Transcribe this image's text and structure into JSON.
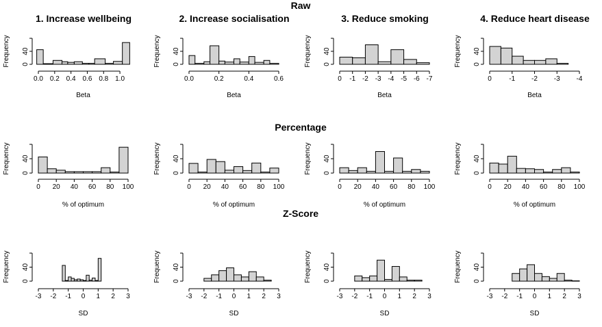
{
  "figure": {
    "row_titles": [
      "Raw",
      "Percentage",
      "Z-Score"
    ],
    "column_titles": [
      "1. Increase wellbeing",
      "2. Increase socialisation",
      "3. Reduce smoking",
      "4. Reduce heart disease"
    ],
    "colors": {
      "bar_fill": "#d3d3d3",
      "bar_stroke": "#000000",
      "background": "#ffffff"
    }
  },
  "chart_data": [
    {
      "type": "bar",
      "row": 0,
      "col": 0,
      "xlabel": "Beta",
      "ylabel": "Frequency",
      "xlim": [
        0,
        1.1
      ],
      "ylim": [
        0,
        80
      ],
      "xticks": [
        0.0,
        0.2,
        0.4,
        0.6,
        0.8,
        1.0
      ],
      "xtick_labels": [
        "0.0",
        "0.2",
        "0.4",
        "0.6",
        "0.8",
        "1.0"
      ],
      "yticks": [
        0,
        40
      ],
      "ytick_labels": [
        "0",
        "40"
      ],
      "bins": [
        [
          -0.02,
          0.06
        ],
        [
          0.06,
          0.18
        ],
        [
          0.18,
          0.29
        ],
        [
          0.29,
          0.36
        ],
        [
          0.36,
          0.44
        ],
        [
          0.44,
          0.54
        ],
        [
          0.54,
          0.62
        ],
        [
          0.62,
          0.69
        ],
        [
          0.69,
          0.82
        ],
        [
          0.82,
          0.92
        ],
        [
          0.92,
          1.03
        ],
        [
          1.03,
          1.12
        ]
      ],
      "values": [
        45,
        2,
        12,
        8,
        6,
        8,
        3,
        3,
        17,
        3,
        9,
        67
      ]
    },
    {
      "type": "bar",
      "row": 0,
      "col": 1,
      "xlabel": "Beta",
      "ylabel": "Frequency",
      "xlim": [
        0,
        0.6
      ],
      "ylim": [
        0,
        80
      ],
      "xticks": [
        0.0,
        0.2,
        0.4,
        0.6
      ],
      "xtick_labels": [
        "0.0",
        "0.2",
        "0.4",
        "0.6"
      ],
      "yticks": [
        0,
        40
      ],
      "ytick_labels": [
        "0",
        "40"
      ],
      "bins": [
        [
          0.0,
          0.04
        ],
        [
          0.04,
          0.1
        ],
        [
          0.1,
          0.14
        ],
        [
          0.14,
          0.2
        ],
        [
          0.2,
          0.24
        ],
        [
          0.24,
          0.3
        ],
        [
          0.3,
          0.34
        ],
        [
          0.34,
          0.4
        ],
        [
          0.4,
          0.44
        ],
        [
          0.44,
          0.5
        ],
        [
          0.5,
          0.54
        ],
        [
          0.54,
          0.6
        ]
      ],
      "values": [
        27,
        3,
        8,
        57,
        10,
        7,
        17,
        7,
        24,
        6,
        12,
        3
      ]
    },
    {
      "type": "bar",
      "row": 0,
      "col": 2,
      "xlabel": "Beta",
      "ylabel": "Frequency",
      "xlim": [
        0,
        -7
      ],
      "ylim": [
        0,
        80
      ],
      "xticks": [
        0,
        -1,
        -2,
        -3,
        -4,
        -5,
        -6,
        -7
      ],
      "xtick_labels": [
        "0",
        "-1",
        "-2",
        "-3",
        "-4",
        "-5",
        "-6",
        "-7"
      ],
      "yticks": [
        0,
        40
      ],
      "ytick_labels": [
        "0",
        "40"
      ],
      "bins": [
        [
          0,
          -1
        ],
        [
          -1,
          -2
        ],
        [
          -2,
          -3
        ],
        [
          -3,
          -4
        ],
        [
          -4,
          -5
        ],
        [
          -5,
          -6
        ],
        [
          -6,
          -7
        ]
      ],
      "values": [
        22,
        20,
        60,
        8,
        45,
        15,
        5
      ]
    },
    {
      "type": "bar",
      "row": 0,
      "col": 3,
      "xlabel": "Beta",
      "ylabel": "Frequency",
      "xlim": [
        0,
        -4
      ],
      "ylim": [
        0,
        80
      ],
      "xticks": [
        0,
        -1,
        -2,
        -3,
        -4
      ],
      "xtick_labels": [
        "0",
        "-1",
        "-2",
        "-3",
        "-4"
      ],
      "yticks": [
        0,
        40
      ],
      "ytick_labels": [
        "0",
        "40"
      ],
      "bins": [
        [
          0,
          -0.5
        ],
        [
          -0.5,
          -1
        ],
        [
          -1,
          -1.5
        ],
        [
          -1.5,
          -2
        ],
        [
          -2,
          -2.5
        ],
        [
          -2.5,
          -3
        ],
        [
          -3,
          -3.5
        ]
      ],
      "values": [
        55,
        50,
        25,
        12,
        12,
        17,
        3
      ]
    },
    {
      "type": "bar",
      "row": 1,
      "col": 0,
      "xlabel": "% of optimum",
      "ylabel": "Frequency",
      "xlim": [
        0,
        100
      ],
      "ylim": [
        0,
        80
      ],
      "xticks": [
        0,
        20,
        40,
        60,
        80,
        100
      ],
      "xtick_labels": [
        "0",
        "20",
        "40",
        "60",
        "80",
        "100"
      ],
      "yticks": [
        0,
        40
      ],
      "ytick_labels": [
        "0",
        "40"
      ],
      "bins": [
        [
          0,
          10
        ],
        [
          10,
          20
        ],
        [
          20,
          30
        ],
        [
          30,
          40
        ],
        [
          40,
          50
        ],
        [
          50,
          60
        ],
        [
          60,
          70
        ],
        [
          70,
          80
        ],
        [
          80,
          90
        ],
        [
          90,
          100
        ]
      ],
      "values": [
        45,
        12,
        8,
        4,
        4,
        4,
        4,
        15,
        3,
        72
      ]
    },
    {
      "type": "bar",
      "row": 1,
      "col": 1,
      "xlabel": "% of optimum",
      "ylabel": "Frequency",
      "xlim": [
        0,
        100
      ],
      "ylim": [
        0,
        80
      ],
      "xticks": [
        0,
        20,
        40,
        60,
        80,
        100
      ],
      "xtick_labels": [
        "0",
        "20",
        "40",
        "60",
        "80",
        "100"
      ],
      "yticks": [
        0,
        40
      ],
      "ytick_labels": [
        "0",
        "40"
      ],
      "bins": [
        [
          0,
          10
        ],
        [
          10,
          20
        ],
        [
          20,
          30
        ],
        [
          30,
          40
        ],
        [
          40,
          50
        ],
        [
          50,
          60
        ],
        [
          60,
          70
        ],
        [
          70,
          80
        ],
        [
          80,
          90
        ],
        [
          90,
          100
        ]
      ],
      "values": [
        27,
        3,
        38,
        32,
        8,
        18,
        7,
        28,
        3,
        14
      ]
    },
    {
      "type": "bar",
      "row": 1,
      "col": 2,
      "xlabel": "% of optimum",
      "ylabel": "Frequency",
      "xlim": [
        0,
        100
      ],
      "ylim": [
        0,
        80
      ],
      "xticks": [
        0,
        20,
        40,
        60,
        80,
        100
      ],
      "xtick_labels": [
        "0",
        "20",
        "40",
        "60",
        "80",
        "100"
      ],
      "yticks": [
        0,
        40
      ],
      "ytick_labels": [
        "0",
        "40"
      ],
      "bins": [
        [
          0,
          10
        ],
        [
          10,
          20
        ],
        [
          20,
          30
        ],
        [
          30,
          40
        ],
        [
          40,
          50
        ],
        [
          50,
          60
        ],
        [
          60,
          70
        ],
        [
          70,
          80
        ],
        [
          80,
          90
        ],
        [
          90,
          100
        ]
      ],
      "values": [
        15,
        7,
        15,
        5,
        60,
        5,
        42,
        5,
        10,
        5
      ]
    },
    {
      "type": "bar",
      "row": 1,
      "col": 3,
      "xlabel": "% of optimum",
      "ylabel": "Frequency",
      "xlim": [
        0,
        100
      ],
      "ylim": [
        0,
        80
      ],
      "xticks": [
        0,
        20,
        40,
        60,
        80,
        100
      ],
      "xtick_labels": [
        "0",
        "20",
        "40",
        "60",
        "80",
        "100"
      ],
      "yticks": [
        0,
        40
      ],
      "ytick_labels": [
        "0",
        "40"
      ],
      "bins": [
        [
          0,
          10
        ],
        [
          10,
          20
        ],
        [
          20,
          30
        ],
        [
          30,
          40
        ],
        [
          40,
          50
        ],
        [
          50,
          60
        ],
        [
          60,
          70
        ],
        [
          70,
          80
        ],
        [
          80,
          90
        ],
        [
          90,
          100
        ]
      ],
      "values": [
        28,
        25,
        47,
        13,
        12,
        10,
        3,
        10,
        15,
        3
      ]
    },
    {
      "type": "bar",
      "row": 2,
      "col": 0,
      "xlabel": "SD",
      "ylabel": "Frequency",
      "xlim": [
        -3,
        3
      ],
      "ylim": [
        0,
        80
      ],
      "xticks": [
        -3,
        -2,
        -1,
        0,
        1,
        2,
        3
      ],
      "xtick_labels": [
        "-3",
        "-2",
        "-1",
        "0",
        "1",
        "2",
        "3"
      ],
      "yticks": [
        0,
        40
      ],
      "ytick_labels": [
        "0",
        "40"
      ],
      "bins": [
        [
          -1.4,
          -1.2
        ],
        [
          -1.2,
          -1.0
        ],
        [
          -1.0,
          -0.8
        ],
        [
          -0.8,
          -0.6
        ],
        [
          -0.6,
          -0.4
        ],
        [
          -0.4,
          -0.2
        ],
        [
          -0.2,
          0.0
        ],
        [
          0.0,
          0.2
        ],
        [
          0.2,
          0.4
        ],
        [
          0.4,
          0.6
        ],
        [
          0.6,
          0.8
        ],
        [
          0.8,
          1.0
        ],
        [
          1.0,
          1.2
        ]
      ],
      "values": [
        45,
        2,
        12,
        8,
        4,
        6,
        4,
        2,
        17,
        3,
        9,
        2,
        65
      ]
    },
    {
      "type": "bar",
      "row": 2,
      "col": 1,
      "xlabel": "SD",
      "ylabel": "Frequency",
      "xlim": [
        -3,
        3
      ],
      "ylim": [
        0,
        80
      ],
      "xticks": [
        -3,
        -2,
        -1,
        0,
        1,
        2,
        3
      ],
      "xtick_labels": [
        "-3",
        "-2",
        "-1",
        "0",
        "1",
        "2",
        "3"
      ],
      "yticks": [
        0,
        40
      ],
      "ytick_labels": [
        "0",
        "40"
      ],
      "bins": [
        [
          -2.0,
          -1.5
        ],
        [
          -1.5,
          -1.0
        ],
        [
          -1.0,
          -0.5
        ],
        [
          -0.5,
          0.0
        ],
        [
          0.0,
          0.5
        ],
        [
          0.5,
          1.0
        ],
        [
          1.0,
          1.5
        ],
        [
          1.5,
          2.0
        ],
        [
          2.0,
          2.5
        ]
      ],
      "values": [
        8,
        18,
        30,
        38,
        18,
        12,
        27,
        12,
        3
      ]
    },
    {
      "type": "bar",
      "row": 2,
      "col": 2,
      "xlabel": "SD",
      "ylabel": "Frequency",
      "xlim": [
        -3,
        3
      ],
      "ylim": [
        0,
        80
      ],
      "xticks": [
        -3,
        -2,
        -1,
        0,
        1,
        2,
        3
      ],
      "xtick_labels": [
        "-3",
        "-2",
        "-1",
        "0",
        "1",
        "2",
        "3"
      ],
      "yticks": [
        0,
        40
      ],
      "ytick_labels": [
        "0",
        "40"
      ],
      "bins": [
        [
          -2.0,
          -1.5
        ],
        [
          -1.5,
          -1.0
        ],
        [
          -1.0,
          -0.5
        ],
        [
          -0.5,
          0.0
        ],
        [
          0.0,
          0.5
        ],
        [
          0.5,
          1.0
        ],
        [
          1.0,
          1.5
        ],
        [
          1.5,
          2.0
        ],
        [
          2.0,
          2.5
        ]
      ],
      "values": [
        15,
        10,
        15,
        60,
        5,
        42,
        12,
        3,
        3
      ]
    },
    {
      "type": "bar",
      "row": 2,
      "col": 3,
      "xlabel": "SD",
      "ylabel": "Frequency",
      "xlim": [
        -3,
        3
      ],
      "ylim": [
        0,
        80
      ],
      "xticks": [
        -3,
        -2,
        -1,
        0,
        1,
        2,
        3
      ],
      "xtick_labels": [
        "-3",
        "-2",
        "-1",
        "0",
        "1",
        "2",
        "3"
      ],
      "yticks": [
        0,
        40
      ],
      "ytick_labels": [
        "0",
        "40"
      ],
      "bins": [
        [
          -1.5,
          -1.0
        ],
        [
          -1.0,
          -0.5
        ],
        [
          -0.5,
          0.0
        ],
        [
          0.0,
          0.5
        ],
        [
          0.5,
          1.0
        ],
        [
          1.0,
          1.5
        ],
        [
          1.5,
          2.0
        ],
        [
          2.0,
          2.5
        ],
        [
          2.5,
          3.0
        ]
      ],
      "values": [
        22,
        35,
        47,
        22,
        13,
        8,
        22,
        3,
        1
      ]
    }
  ]
}
